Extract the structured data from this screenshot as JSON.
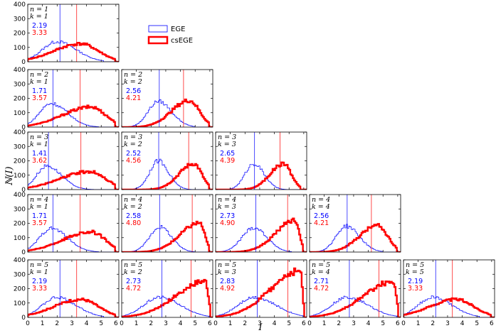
{
  "chart_data": {
    "type": "step-histogram-grid",
    "xlabel": "I",
    "ylabel": "ℕ(I)",
    "xlim": [
      0,
      6.2
    ],
    "ylim": [
      0,
      400
    ],
    "xticks": [
      "0",
      "1",
      "2",
      "3",
      "4",
      "5",
      "6"
    ],
    "yticks": [
      "0",
      "100",
      "200",
      "300",
      "400"
    ],
    "series": [
      {
        "name": "EGE",
        "color": "#0000ff"
      },
      {
        "name": "csEGE",
        "color": "#ff0000"
      }
    ],
    "panels": [
      {
        "n_label": "n = 1",
        "k_label": "k = 1",
        "row": 1,
        "col": 1,
        "ege_mean": 2.19,
        "csege_mean": 3.33,
        "ege_mean_label": "2.19",
        "csege_mean_label": "3.33",
        "ege_peak": [
          2.0,
          140
        ],
        "ege_sigma": [
          1.0,
          1.3
        ],
        "ege_end": 5.2,
        "csege_peak": [
          3.6,
          125
        ],
        "csege_sigma": [
          1.8,
          1.2
        ],
        "csege_end": 5.9
      },
      {
        "n_label": "n = 2",
        "k_label": "k = 1",
        "row": 2,
        "col": 1,
        "ege_mean": 1.71,
        "csege_mean": 3.57,
        "ege_mean_label": "1.71",
        "csege_mean_label": "3.57",
        "ege_peak": [
          1.6,
          165
        ],
        "ege_sigma": [
          0.8,
          1.1
        ],
        "ege_end": 4.8,
        "csege_peak": [
          4.3,
          140
        ],
        "csege_sigma": [
          1.9,
          1.0
        ],
        "csege_end": 5.9
      },
      {
        "n_label": "n = 2",
        "k_label": "k = 2",
        "row": 2,
        "col": 2,
        "ege_mean": 2.56,
        "csege_mean": 4.21,
        "ege_mean_label": "2.56",
        "csege_mean_label": "4.21",
        "ege_peak": [
          2.5,
          180
        ],
        "ege_sigma": [
          0.7,
          0.9
        ],
        "ege_end": 5.0,
        "csege_peak": [
          4.6,
          185
        ],
        "csege_sigma": [
          1.2,
          0.7
        ],
        "csege_end": 5.9
      },
      {
        "n_label": "n = 3",
        "k_label": "k = 1",
        "row": 3,
        "col": 1,
        "ege_mean": 1.41,
        "csege_mean": 3.62,
        "ege_mean_label": "1.41",
        "csege_mean_label": "3.62",
        "ege_peak": [
          1.3,
          165
        ],
        "ege_sigma": [
          0.7,
          1.0
        ],
        "ege_end": 4.5,
        "csege_peak": [
          4.2,
          125
        ],
        "csege_sigma": [
          2.0,
          1.1
        ],
        "csege_end": 5.9
      },
      {
        "n_label": "n = 3",
        "k_label": "k = 2",
        "row": 3,
        "col": 2,
        "ege_mean": 2.52,
        "csege_mean": 4.56,
        "ege_mean_label": "2.52",
        "csege_mean_label": "4.56",
        "ege_peak": [
          2.5,
          200
        ],
        "ege_sigma": [
          0.6,
          0.7
        ],
        "ege_end": 5.0,
        "csege_peak": [
          4.9,
          180
        ],
        "csege_sigma": [
          1.0,
          0.55
        ],
        "csege_end": 5.95
      },
      {
        "n_label": "n = 3",
        "k_label": "k = 3",
        "row": 3,
        "col": 3,
        "ege_mean": 2.65,
        "csege_mean": 4.39,
        "ege_mean_label": "2.65",
        "csege_mean_label": "4.39",
        "ege_peak": [
          2.6,
          180
        ],
        "ege_sigma": [
          0.6,
          0.7
        ],
        "ege_end": 5.0,
        "csege_peak": [
          4.6,
          180
        ],
        "csege_sigma": [
          0.9,
          0.55
        ],
        "csege_end": 5.8
      },
      {
        "n_label": "n = 4",
        "k_label": "k = 1",
        "row": 4,
        "col": 1,
        "ege_mean": 1.71,
        "csege_mean": 3.57,
        "ege_mean_label": "1.71",
        "csege_mean_label": "3.57",
        "ege_peak": [
          1.6,
          165
        ],
        "ege_sigma": [
          0.8,
          1.1
        ],
        "ege_end": 4.8,
        "csege_peak": [
          4.3,
          140
        ],
        "csege_sigma": [
          1.9,
          1.0
        ],
        "csege_end": 5.9
      },
      {
        "n_label": "n = 4",
        "k_label": "k = 2",
        "row": 4,
        "col": 2,
        "ege_mean": 2.58,
        "csege_mean": 4.8,
        "ege_mean_label": "2.58",
        "csege_mean_label": "4.80",
        "ege_peak": [
          2.6,
          175
        ],
        "ege_sigma": [
          0.7,
          0.8
        ],
        "ege_end": 5.0,
        "csege_peak": [
          5.3,
          205
        ],
        "csege_sigma": [
          1.3,
          0.35
        ],
        "csege_end": 5.95
      },
      {
        "n_label": "n = 4",
        "k_label": "k = 3",
        "row": 4,
        "col": 3,
        "ege_mean": 2.73,
        "csege_mean": 4.9,
        "ege_mean_label": "2.73",
        "csege_mean_label": "4.90",
        "ege_peak": [
          2.6,
          170
        ],
        "ege_sigma": [
          0.8,
          0.9
        ],
        "ege_end": 5.2,
        "csege_peak": [
          5.4,
          220
        ],
        "csege_sigma": [
          1.3,
          0.3
        ],
        "csege_end": 5.95
      },
      {
        "n_label": "n = 4",
        "k_label": "k = 4",
        "row": 4,
        "col": 4,
        "ege_mean": 2.56,
        "csege_mean": 4.21,
        "ege_mean_label": "2.56",
        "csege_mean_label": "4.21",
        "ege_peak": [
          2.5,
          180
        ],
        "ege_sigma": [
          0.7,
          0.9
        ],
        "ege_end": 5.0,
        "csege_peak": [
          4.6,
          185
        ],
        "csege_sigma": [
          1.2,
          0.7
        ],
        "csege_end": 5.9
      },
      {
        "n_label": "n = 5",
        "k_label": "k = 1",
        "row": 5,
        "col": 1,
        "ege_mean": 2.19,
        "csege_mean": 3.33,
        "ege_mean_label": "2.19",
        "csege_mean_label": "3.33",
        "ege_peak": [
          2.0,
          140
        ],
        "ege_sigma": [
          1.0,
          1.3
        ],
        "ege_end": 5.2,
        "csege_peak": [
          3.6,
          125
        ],
        "csege_sigma": [
          1.8,
          1.2
        ],
        "csege_end": 5.9
      },
      {
        "n_label": "n = 5",
        "k_label": "k = 2",
        "row": 5,
        "col": 2,
        "ege_mean": 2.73,
        "csege_mean": 4.72,
        "ege_mean_label": "2.73",
        "csege_mean_label": "4.72",
        "ege_peak": [
          2.6,
          140
        ],
        "ege_sigma": [
          1.1,
          1.4
        ],
        "ege_end": 5.9,
        "csege_peak": [
          5.7,
          250
        ],
        "csege_sigma": [
          2.0,
          0.2
        ],
        "csege_end": 6.0
      },
      {
        "n_label": "n = 5",
        "k_label": "k = 3",
        "row": 5,
        "col": 3,
        "ege_mean": 2.83,
        "csege_mean": 4.92,
        "ege_mean_label": "2.83",
        "csege_mean_label": "4.92",
        "ege_peak": [
          2.6,
          140
        ],
        "ege_sigma": [
          1.1,
          1.5
        ],
        "ege_end": 5.9,
        "csege_peak": [
          5.75,
          325
        ],
        "csege_sigma": [
          2.0,
          0.15
        ],
        "csege_end": 6.0
      },
      {
        "n_label": "n = 5",
        "k_label": "k = 4",
        "row": 5,
        "col": 4,
        "ege_mean": 2.71,
        "csege_mean": 4.72,
        "ege_mean_label": "2.71",
        "csege_mean_label": "4.72",
        "ege_peak": [
          2.6,
          140
        ],
        "ege_sigma": [
          1.1,
          1.4
        ],
        "ege_end": 5.9,
        "csege_peak": [
          5.7,
          250
        ],
        "csege_sigma": [
          2.0,
          0.2
        ],
        "csege_end": 6.0
      },
      {
        "n_label": "n = 5",
        "k_label": "k = 5",
        "row": 5,
        "col": 5,
        "ege_mean": 2.19,
        "csege_mean": 3.33,
        "ege_mean_label": "2.19",
        "csege_mean_label": "3.33",
        "ege_peak": [
          2.0,
          140
        ],
        "ege_sigma": [
          1.0,
          1.3
        ],
        "ege_end": 5.2,
        "csege_peak": [
          3.6,
          125
        ],
        "csege_sigma": [
          1.8,
          1.2
        ],
        "csege_end": 5.9
      }
    ]
  }
}
